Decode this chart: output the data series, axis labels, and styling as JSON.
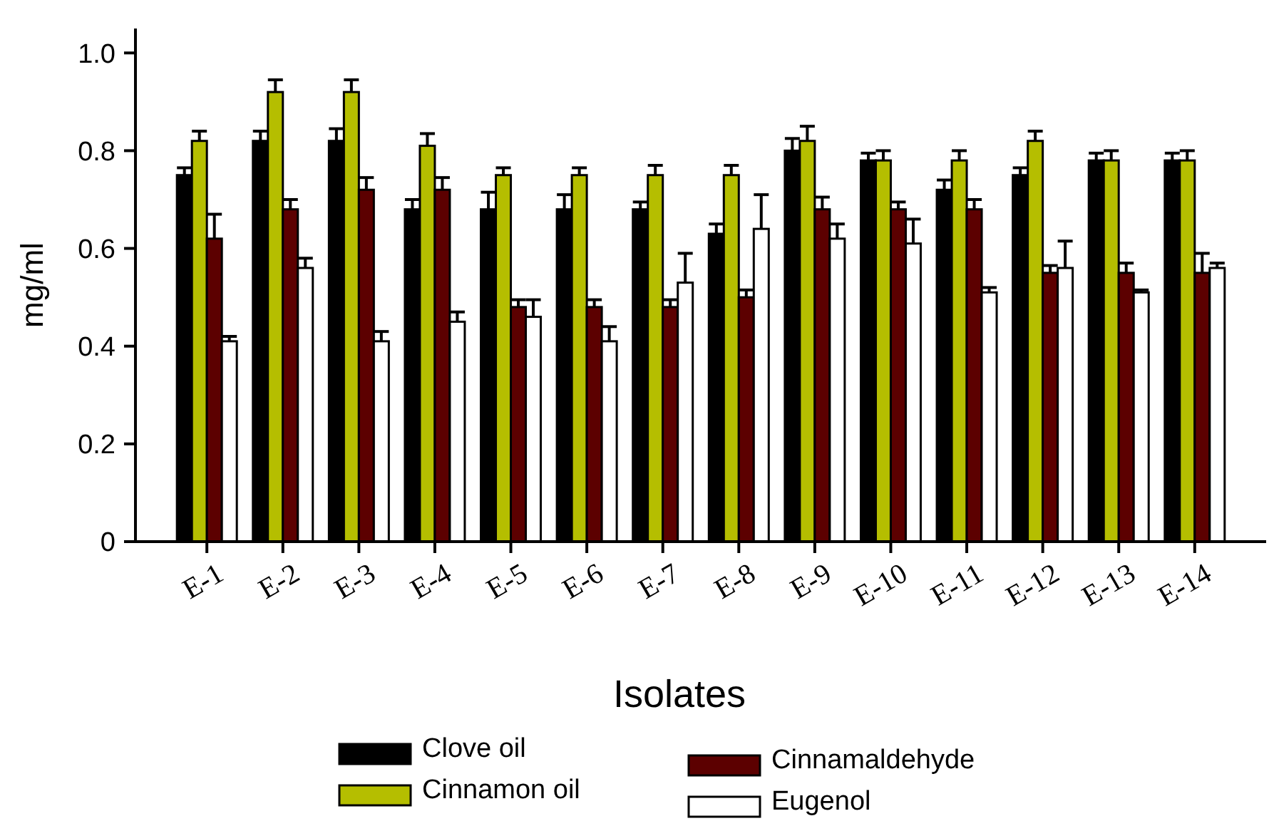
{
  "chart_data": {
    "type": "bar",
    "xlabel": "Isolates",
    "ylabel": "mg/ml",
    "categories": [
      "E-1",
      "E-2",
      "E-3",
      "E-4",
      "E-5",
      "E-6",
      "E-7",
      "E-8",
      "E-9",
      "E-10",
      "E-11",
      "E-12",
      "E-13",
      "E-14"
    ],
    "ylim": [
      0,
      1.05
    ],
    "yticks": [
      0,
      0.2,
      0.4,
      0.6,
      0.8,
      {
        "value": 1.0,
        "label": "1.0"
      }
    ],
    "grid": false,
    "legend": "bottom",
    "series": [
      {
        "name": "Clove oil",
        "color": "#000000",
        "values": [
          0.75,
          0.82,
          0.82,
          0.68,
          0.68,
          0.68,
          0.68,
          0.63,
          0.8,
          0.78,
          0.72,
          0.75,
          0.78,
          0.78
        ],
        "errors": [
          [
            0.75,
            0.765
          ],
          [
            0.82,
            0.84
          ],
          [
            0.82,
            0.845
          ],
          [
            0.68,
            0.7
          ],
          [
            0.68,
            0.715
          ],
          [
            0.68,
            0.71
          ],
          [
            0.68,
            0.695
          ],
          [
            0.63,
            0.65
          ],
          [
            0.8,
            0.825
          ],
          [
            0.78,
            0.795
          ],
          [
            0.72,
            0.74
          ],
          [
            0.75,
            0.765
          ],
          [
            0.78,
            0.795
          ],
          [
            0.78,
            0.795
          ]
        ]
      },
      {
        "name": "Cinnamon oil",
        "color": "#b5be00",
        "values": [
          0.82,
          0.92,
          0.92,
          0.81,
          0.75,
          0.75,
          0.75,
          0.75,
          0.82,
          0.78,
          0.78,
          0.82,
          0.78,
          0.78
        ],
        "errors": [
          [
            0.82,
            0.84
          ],
          [
            0.92,
            0.945
          ],
          [
            0.92,
            0.945
          ],
          [
            0.81,
            0.835
          ],
          [
            0.75,
            0.765
          ],
          [
            0.75,
            0.765
          ],
          [
            0.75,
            0.77
          ],
          [
            0.75,
            0.77
          ],
          [
            0.82,
            0.85
          ],
          [
            0.78,
            0.8
          ],
          [
            0.78,
            0.8
          ],
          [
            0.82,
            0.84
          ],
          [
            0.78,
            0.8
          ],
          [
            0.78,
            0.8
          ]
        ]
      },
      {
        "name": "Cinnamaldehyde",
        "color": "#5c0000",
        "values": [
          0.62,
          0.68,
          0.72,
          0.72,
          0.48,
          0.48,
          0.48,
          0.5,
          0.68,
          0.68,
          0.68,
          0.55,
          0.55,
          0.55
        ],
        "errors": [
          [
            0.62,
            0.67
          ],
          [
            0.68,
            0.7
          ],
          [
            0.72,
            0.745
          ],
          [
            0.72,
            0.745
          ],
          [
            0.48,
            0.495
          ],
          [
            0.48,
            0.495
          ],
          [
            0.48,
            0.495
          ],
          [
            0.5,
            0.515
          ],
          [
            0.68,
            0.705
          ],
          [
            0.68,
            0.695
          ],
          [
            0.68,
            0.7
          ],
          [
            0.55,
            0.565
          ],
          [
            0.55,
            0.57
          ],
          [
            0.55,
            0.59
          ]
        ]
      },
      {
        "name": "Eugenol",
        "color": "#ffffff",
        "values": [
          0.41,
          0.56,
          0.41,
          0.45,
          0.46,
          0.41,
          0.53,
          0.64,
          0.62,
          0.61,
          0.51,
          0.56,
          0.51,
          0.56
        ],
        "errors": [
          [
            0.41,
            0.42
          ],
          [
            0.56,
            0.58
          ],
          [
            0.41,
            0.43
          ],
          [
            0.45,
            0.47
          ],
          [
            0.46,
            0.495
          ],
          [
            0.41,
            0.44
          ],
          [
            0.53,
            0.59
          ],
          [
            0.64,
            0.71
          ],
          [
            0.62,
            0.65
          ],
          [
            0.61,
            0.66
          ],
          [
            0.51,
            0.52
          ],
          [
            0.56,
            0.615
          ],
          [
            0.51,
            0.515
          ],
          [
            0.56,
            0.57
          ]
        ]
      }
    ]
  }
}
